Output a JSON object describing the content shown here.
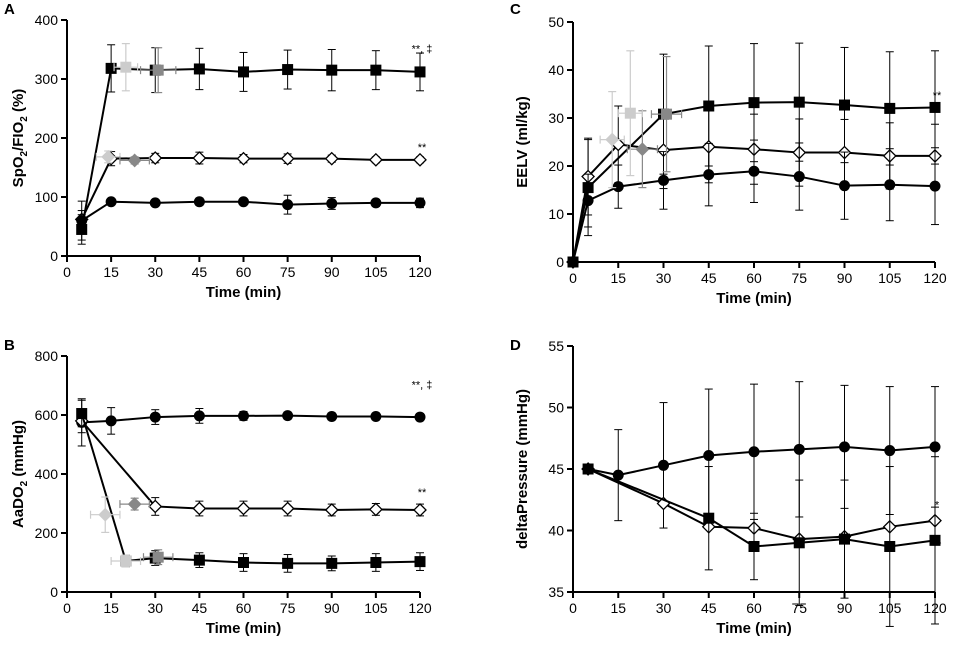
{
  "chart_data": [
    {
      "type": "line",
      "panel_label": "A",
      "ylabel_main": "SpO",
      "ylabel_sub1": "2",
      "ylabel_mid": "/FIO",
      "ylabel_sub2": "2",
      "ylabel_tail": " (%)",
      "xlabel": "Time (min)",
      "xlim": [
        0,
        120
      ],
      "ylim": [
        0,
        400
      ],
      "xticks": [
        0,
        15,
        30,
        45,
        60,
        75,
        90,
        105,
        120
      ],
      "yticks": [
        0,
        100,
        200,
        300,
        400
      ],
      "series": [
        {
          "name": "square",
          "marker": "square",
          "color": "#000000",
          "x": [
            5,
            15,
            30,
            45,
            60,
            75,
            90,
            105,
            120
          ],
          "y": [
            45,
            318,
            315,
            317,
            312,
            316,
            315,
            315,
            312
          ],
          "err": [
            25,
            40,
            38,
            35,
            33,
            33,
            35,
            33,
            32
          ]
        },
        {
          "name": "diamond",
          "marker": "diamond",
          "color": "#000000",
          "x": [
            5,
            15,
            30,
            45,
            60,
            75,
            90,
            105,
            120
          ],
          "y": [
            62,
            165,
            166,
            166,
            165,
            165,
            165,
            163,
            163
          ],
          "err": [
            15,
            12,
            8,
            10,
            7,
            8,
            6,
            5,
            5
          ]
        },
        {
          "name": "circle",
          "marker": "circle",
          "color": "#000000",
          "x": [
            5,
            15,
            30,
            45,
            60,
            75,
            90,
            105,
            120
          ],
          "y": [
            60,
            92,
            90,
            92,
            92,
            87,
            89,
            90,
            90
          ],
          "err": [
            33,
            5,
            5,
            6,
            5,
            16,
            10,
            6,
            8
          ]
        }
      ],
      "extra_points": [
        {
          "x": 20,
          "y": 320,
          "color": "#cccccc",
          "shape": "square",
          "xerr": 4,
          "yerr": 40
        },
        {
          "x": 31,
          "y": 315,
          "color": "#888888",
          "shape": "square",
          "xerr": 6,
          "yerr": 38
        },
        {
          "x": 14,
          "y": 168,
          "color": "#cccccc",
          "shape": "diamond",
          "xerr": 4,
          "yerr": 10
        },
        {
          "x": 23,
          "y": 162,
          "color": "#888888",
          "shape": "diamond",
          "xerr": 5,
          "yerr": 6
        }
      ],
      "annotations": [
        {
          "text": "**, ‡",
          "x": 120,
          "y": 345
        },
        {
          "text": "**",
          "x": 120,
          "y": 178
        }
      ]
    },
    {
      "type": "line",
      "panel_label": "B",
      "ylabel_main": "AaDO",
      "ylabel_sub1": "2",
      "ylabel_mid": "",
      "ylabel_sub2": "",
      "ylabel_tail": " (mmHg)",
      "xlabel": "Time (min)",
      "xlim": [
        0,
        120
      ],
      "ylim": [
        0,
        800
      ],
      "xticks": [
        0,
        15,
        30,
        45,
        60,
        75,
        90,
        105,
        120
      ],
      "yticks": [
        0,
        200,
        400,
        600,
        800
      ],
      "series": [
        {
          "name": "circle",
          "marker": "circle",
          "color": "#000000",
          "x": [
            5,
            15,
            30,
            45,
            60,
            75,
            90,
            105,
            120
          ],
          "y": [
            575,
            580,
            593,
            597,
            597,
            598,
            595,
            595,
            593
          ],
          "err": [
            80,
            45,
            25,
            25,
            15,
            12,
            12,
            12,
            12
          ]
        },
        {
          "name": "diamond",
          "marker": "diamond",
          "color": "#000000",
          "x": [
            5,
            30,
            45,
            60,
            75,
            90,
            105,
            120
          ],
          "y": [
            580,
            290,
            283,
            283,
            283,
            278,
            280,
            278
          ],
          "err": [
            40,
            30,
            25,
            25,
            25,
            20,
            20,
            20
          ]
        },
        {
          "name": "square",
          "marker": "square",
          "color": "#000000",
          "x": [
            5,
            20,
            30,
            45,
            60,
            75,
            90,
            105,
            120
          ],
          "y": [
            605,
            105,
            115,
            108,
            100,
            97,
            97,
            100,
            103
          ],
          "err": [
            45,
            20,
            25,
            25,
            30,
            30,
            25,
            30,
            30
          ]
        }
      ],
      "extra_points": [
        {
          "x": 13,
          "y": 262,
          "color": "#cccccc",
          "shape": "diamond",
          "xerr": 5,
          "yerr": 60
        },
        {
          "x": 23,
          "y": 298,
          "color": "#888888",
          "shape": "diamond",
          "xerr": 5,
          "yerr": 20
        },
        {
          "x": 20,
          "y": 105,
          "color": "#cccccc",
          "shape": "square",
          "xerr": 5,
          "yerr": 20
        },
        {
          "x": 31,
          "y": 118,
          "color": "#888888",
          "shape": "square",
          "xerr": 5,
          "yerr": 25
        }
      ],
      "annotations": [
        {
          "text": "**, ‡",
          "x": 120,
          "y": 690
        },
        {
          "text": "**",
          "x": 120,
          "y": 325
        }
      ]
    },
    {
      "type": "line",
      "panel_label": "C",
      "ylabel_main": "EELV  (ml/kg)",
      "ylabel_sub1": "",
      "ylabel_mid": "",
      "ylabel_sub2": "",
      "ylabel_tail": "",
      "xlabel": "Time (min)",
      "xlim": [
        0,
        120
      ],
      "ylim": [
        0,
        50
      ],
      "xticks": [
        0,
        15,
        30,
        45,
        60,
        75,
        90,
        105,
        120
      ],
      "yticks": [
        0,
        10,
        20,
        30,
        40,
        50
      ],
      "series": [
        {
          "name": "square",
          "marker": "square",
          "color": "#000000",
          "x": [
            0,
            5,
            30,
            45,
            60,
            75,
            90,
            105,
            120
          ],
          "y": [
            0,
            15.5,
            30.8,
            32.5,
            33.2,
            33.3,
            32.7,
            32.0,
            32.2
          ],
          "err": [
            0,
            10,
            12.5,
            12.5,
            12.3,
            12.3,
            12.0,
            11.8,
            11.8
          ]
        },
        {
          "name": "diamond",
          "marker": "diamond",
          "color": "#000000",
          "x": [
            0,
            5,
            15,
            30,
            45,
            60,
            75,
            90,
            105,
            120
          ],
          "y": [
            0,
            17.8,
            24.5,
            23.3,
            24.0,
            23.5,
            22.8,
            22.8,
            22.1,
            22.1
          ],
          "err": [
            0,
            8,
            8,
            8,
            7.5,
            7.3,
            7,
            6.9,
            6.9,
            6.6
          ]
        },
        {
          "name": "circle",
          "marker": "circle",
          "color": "#000000",
          "x": [
            0,
            5,
            15,
            30,
            45,
            60,
            75,
            90,
            105,
            120
          ],
          "y": [
            0,
            12.8,
            15.7,
            17.0,
            18.2,
            18.9,
            17.8,
            15.9,
            16.1,
            15.8
          ],
          "err": [
            0,
            5.5,
            4.5,
            6,
            6.5,
            6.5,
            7,
            7,
            7.5,
            8
          ]
        }
      ],
      "extra_points": [
        {
          "x": 13,
          "y": 25.5,
          "color": "#cccccc",
          "shape": "diamond",
          "xerr": 4,
          "yerr": 10
        },
        {
          "x": 23,
          "y": 23.5,
          "color": "#888888",
          "shape": "diamond",
          "xerr": 5,
          "yerr": 8
        },
        {
          "x": 19,
          "y": 31.0,
          "color": "#cccccc",
          "shape": "square",
          "xerr": 4,
          "yerr": 13
        },
        {
          "x": 31,
          "y": 30.8,
          "color": "#888888",
          "shape": "square",
          "xerr": 5,
          "yerr": 12
        }
      ],
      "annotations": [
        {
          "text": "**",
          "x": 120,
          "y": 34
        }
      ]
    },
    {
      "type": "line",
      "panel_label": "D",
      "ylabel_main": "deltaPressure (mmHg)",
      "ylabel_sub1": "",
      "ylabel_mid": "",
      "ylabel_sub2": "",
      "ylabel_tail": "",
      "xlabel": "Time (min)",
      "xlim": [
        0,
        120
      ],
      "ylim": [
        35,
        55
      ],
      "xticks": [
        0,
        15,
        30,
        45,
        60,
        75,
        90,
        105,
        120
      ],
      "yticks": [
        35,
        40,
        45,
        50,
        55
      ],
      "series": [
        {
          "name": "circle",
          "marker": "circle",
          "color": "#000000",
          "x": [
            5,
            15,
            30,
            45,
            60,
            75,
            90,
            105,
            120
          ],
          "y": [
            45,
            44.5,
            45.3,
            46.1,
            46.4,
            46.6,
            46.8,
            46.5,
            46.8
          ],
          "err": [
            0,
            3.7,
            5.1,
            5.4,
            5.5,
            5.5,
            5.0,
            5.2,
            4.9
          ]
        },
        {
          "name": "diamond",
          "marker": "diamond",
          "color": "#000000",
          "x": [
            5,
            30,
            45,
            60,
            75,
            90,
            105,
            120
          ],
          "y": [
            45,
            42.2,
            40.3,
            40.2,
            39.3,
            39.5,
            40.3,
            40.8
          ],
          "err": [
            0,
            0,
            0,
            0,
            0,
            0,
            0,
            0
          ]
        },
        {
          "name": "square",
          "marker": "square",
          "color": "#000000",
          "x": [
            5,
            45,
            60,
            75,
            90,
            105,
            120
          ],
          "y": [
            45,
            41.0,
            38.7,
            39.0,
            39.3,
            38.7,
            39.2
          ],
          "err": [
            0,
            4.2,
            2.7,
            5.1,
            4.8,
            6.5,
            6.8
          ]
        }
      ],
      "extra_points": [],
      "annotations": [
        {
          "text": "*",
          "x": 120,
          "y": 41.8
        },
        {
          "text": "**",
          "x": 120,
          "y": 38.5
        }
      ]
    }
  ]
}
